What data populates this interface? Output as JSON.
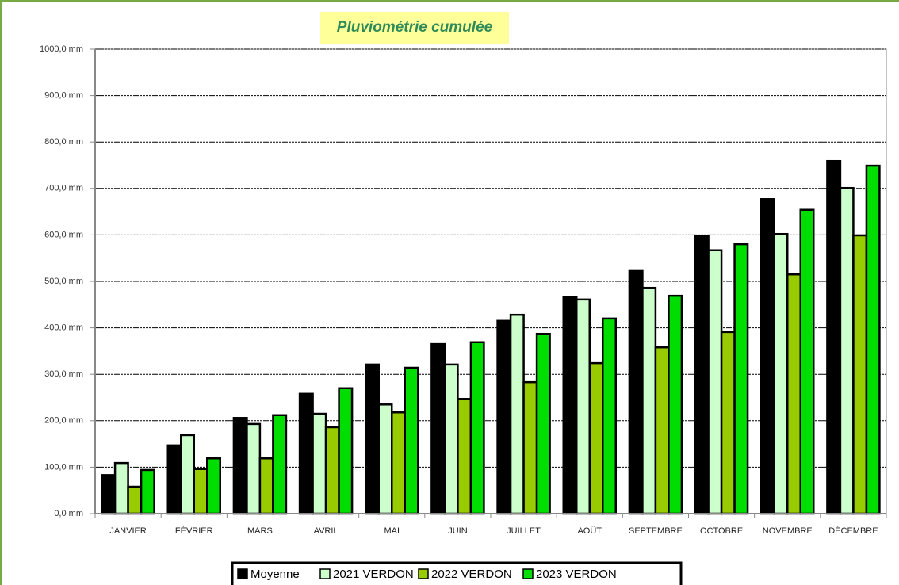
{
  "chart_data": {
    "type": "bar",
    "title": "Pluviométrie cumulée",
    "categories": [
      "JANVIER",
      "FÉVRIER",
      "MARS",
      "AVRIL",
      "MAI",
      "JUIN",
      "JUILLET",
      "AOÛT",
      "SEPTEMBRE",
      "OCTOBRE",
      "NOVEMBRE",
      "DÉCEMBRE"
    ],
    "series": [
      {
        "name": "Moyenne",
        "color": "#000000",
        "values": [
          83,
          147,
          206,
          258,
          321,
          365,
          415,
          466,
          524,
          597,
          677,
          759
        ]
      },
      {
        "name": "2021 VERDON",
        "color": "#ccffcc",
        "values": [
          109,
          169,
          193,
          215,
          235,
          321,
          428,
          461,
          486,
          567,
          602,
          701
        ]
      },
      {
        "name": "2022 VERDON",
        "color": "#99cc00",
        "values": [
          58,
          96,
          119,
          186,
          218,
          247,
          283,
          324,
          358,
          391,
          515,
          599
        ]
      },
      {
        "name": "2023 VERDON",
        "color": "#00dd00",
        "values": [
          94,
          119,
          212,
          270,
          314,
          369,
          387,
          420,
          469,
          580,
          654,
          749
        ]
      }
    ],
    "ylim": [
      0,
      1000
    ],
    "yticks": [
      {
        "value": 0,
        "label": "0,0 mm"
      },
      {
        "value": 100,
        "label": "100,0 mm"
      },
      {
        "value": 200,
        "label": "200,0 mm"
      },
      {
        "value": 300,
        "label": "300,0 mm"
      },
      {
        "value": 400,
        "label": "400,0 mm"
      },
      {
        "value": 500,
        "label": "500,0 mm"
      },
      {
        "value": 600,
        "label": "600,0 mm"
      },
      {
        "value": 700,
        "label": "700,0 mm"
      },
      {
        "value": 800,
        "label": "800,0 mm"
      },
      {
        "value": 900,
        "label": "900,0 mm"
      },
      {
        "value": 1000,
        "label": "1000,0 mm"
      }
    ],
    "grid": true,
    "legend": "bottom"
  }
}
